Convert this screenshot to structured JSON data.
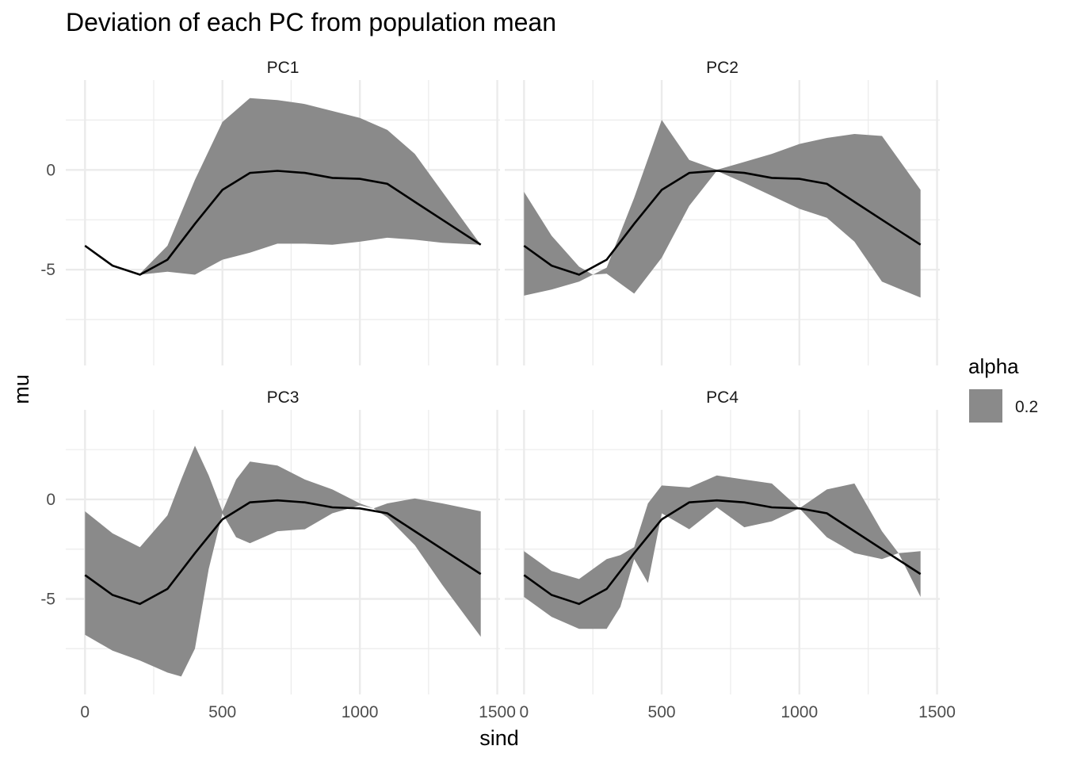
{
  "chart_data": {
    "type": "area",
    "title": "Deviation of each PC from population mean",
    "xlabel": "sind",
    "ylabel": "mu",
    "xlim": [
      -70,
      1510
    ],
    "ylim": [
      -9.8,
      4.5
    ],
    "x_ticks": [
      0,
      500,
      1000,
      1500
    ],
    "x_tick_labels": [
      "0",
      "500",
      "1000",
      "1500"
    ],
    "y_ticks": [
      -5,
      0
    ],
    "y_tick_labels": [
      "-5",
      "0"
    ],
    "grid": true,
    "legend": {
      "title": "alpha",
      "position": "right",
      "entries": [
        {
          "label": "0.2",
          "color": "#8a8a8a"
        }
      ]
    },
    "mean_curve": {
      "x": [
        0,
        100,
        200,
        300,
        400,
        500,
        600,
        700,
        800,
        900,
        1000,
        1100,
        1200,
        1300,
        1440
      ],
      "y": [
        -3.8,
        -4.8,
        -5.25,
        -4.5,
        -2.7,
        -1.0,
        -0.15,
        -0.05,
        -0.15,
        -0.4,
        -0.45,
        -0.7,
        -1.6,
        -2.5,
        -3.75
      ]
    },
    "panels": [
      {
        "name": "PC1",
        "x": [
          0,
          100,
          200,
          300,
          400,
          500,
          600,
          700,
          800,
          900,
          1000,
          1100,
          1200,
          1300,
          1440
        ],
        "upper": [
          -3.75,
          -4.75,
          -5.2,
          -3.8,
          -0.5,
          2.4,
          3.6,
          3.5,
          3.3,
          2.95,
          2.6,
          2.0,
          0.8,
          -1.1,
          -3.75
        ],
        "lower": [
          -3.85,
          -4.85,
          -5.25,
          -5.1,
          -5.25,
          -4.5,
          -4.15,
          -3.7,
          -3.7,
          -3.75,
          -3.6,
          -3.4,
          -3.5,
          -3.65,
          -3.75
        ]
      },
      {
        "name": "PC2",
        "x": [
          0,
          100,
          200,
          250,
          300,
          400,
          500,
          600,
          700,
          800,
          900,
          1000,
          1100,
          1200,
          1300,
          1440
        ],
        "upper": [
          -1.1,
          -3.3,
          -4.85,
          -5.25,
          -4.9,
          -1.4,
          2.5,
          0.5,
          0.0,
          0.4,
          0.8,
          1.3,
          1.6,
          1.8,
          1.7,
          -1.0
        ],
        "lower": [
          -6.3,
          -6.0,
          -5.6,
          -5.25,
          -5.2,
          -6.2,
          -4.4,
          -1.8,
          -0.05,
          -0.65,
          -1.3,
          -1.95,
          -2.4,
          -3.6,
          -5.6,
          -6.4
        ]
      },
      {
        "name": "PC3",
        "x": [
          0,
          100,
          200,
          300,
          350,
          400,
          450,
          500,
          550,
          600,
          700,
          800,
          900,
          1000,
          1050,
          1100,
          1200,
          1300,
          1440
        ],
        "upper": [
          -0.6,
          -1.7,
          -2.4,
          -0.8,
          1.0,
          2.7,
          1.2,
          -0.6,
          1.0,
          1.9,
          1.7,
          1.0,
          0.5,
          -0.2,
          -0.45,
          -0.2,
          0.05,
          -0.2,
          -0.6
        ],
        "lower": [
          -6.8,
          -7.6,
          -8.1,
          -8.7,
          -8.9,
          -7.5,
          -3.5,
          -0.7,
          -1.9,
          -2.2,
          -1.6,
          -1.5,
          -0.7,
          -0.3,
          -0.45,
          -0.9,
          -2.3,
          -4.3,
          -6.9
        ]
      },
      {
        "name": "PC4",
        "x": [
          0,
          100,
          200,
          300,
          350,
          400,
          450,
          500,
          600,
          700,
          800,
          900,
          1000,
          1100,
          1200,
          1300,
          1360,
          1440
        ],
        "upper": [
          -2.6,
          -3.6,
          -4.0,
          -3.0,
          -2.8,
          -2.4,
          -0.2,
          0.7,
          0.6,
          1.2,
          1.0,
          0.8,
          -0.45,
          0.5,
          0.8,
          -1.6,
          -2.7,
          -2.6
        ],
        "lower": [
          -4.9,
          -5.9,
          -6.5,
          -6.5,
          -5.4,
          -3.0,
          -4.2,
          -0.7,
          -1.5,
          -0.4,
          -1.4,
          -1.1,
          -0.45,
          -1.9,
          -2.7,
          -3.0,
          -2.7,
          -4.9
        ]
      }
    ]
  }
}
